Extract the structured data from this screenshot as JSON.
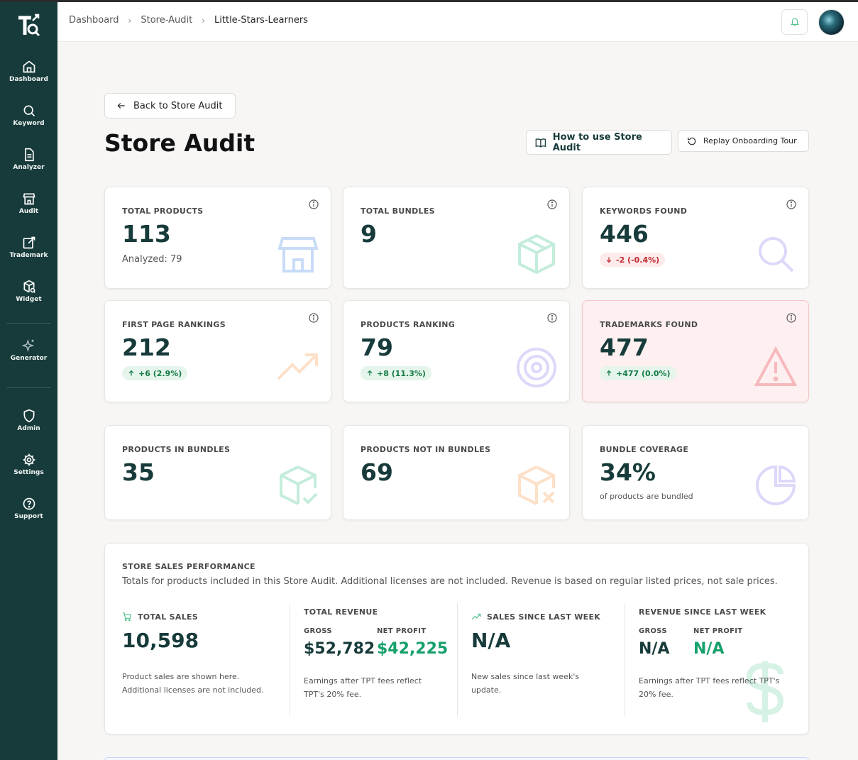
{
  "sidebar": {
    "items": [
      {
        "label": "Dashboard",
        "icon": "home-icon"
      },
      {
        "label": "Keyword",
        "icon": "search-icon"
      },
      {
        "label": "Analyzer",
        "icon": "document-icon"
      },
      {
        "label": "Audit",
        "icon": "store-icon"
      },
      {
        "label": "Trademark",
        "icon": "edit-icon"
      },
      {
        "label": "Widget",
        "icon": "package-search-icon"
      },
      {
        "label": "Generator",
        "icon": "sparkles-icon"
      },
      {
        "label": "Admin",
        "icon": "shield-icon"
      },
      {
        "label": "Settings",
        "icon": "gear-icon"
      },
      {
        "label": "Support",
        "icon": "help-icon"
      }
    ]
  },
  "header": {
    "breadcrumbs": [
      "Dashboard",
      "Store-Audit",
      "Little-Stars-Learners"
    ]
  },
  "page": {
    "back_label": "Back to Store Audit",
    "title": "Store Audit",
    "how_label": "How to use Store Audit",
    "replay_label": "Replay Onboarding Tour"
  },
  "cards": {
    "total_products": {
      "label": "TOTAL PRODUCTS",
      "value": "113",
      "sub": "Analyzed: 79"
    },
    "total_bundles": {
      "label": "TOTAL BUNDLES",
      "value": "9"
    },
    "keywords_found": {
      "label": "KEYWORDS FOUND",
      "value": "446",
      "badge": "-2 (-0.4%)"
    },
    "first_page": {
      "label": "FIRST PAGE RANKINGS",
      "value": "212",
      "badge": "+6 (2.9%)"
    },
    "products_ranking": {
      "label": "PRODUCTS RANKING",
      "value": "79",
      "badge": "+8 (11.3%)"
    },
    "trademarks_found": {
      "label": "TRADEMARKS FOUND",
      "value": "477",
      "badge": "+477 (0.0%)"
    },
    "in_bundles": {
      "label": "PRODUCTS IN BUNDLES",
      "value": "35"
    },
    "not_in_bundles": {
      "label": "PRODUCTS NOT IN BUNDLES",
      "value": "69"
    },
    "bundle_coverage": {
      "label": "BUNDLE COVERAGE",
      "value": "34%",
      "sub": "of products are bundled"
    }
  },
  "sales": {
    "title": "STORE SALES PERFORMANCE",
    "description": "Totals for products included in this Store Audit. Additional licenses are not included. Revenue is based on regular listed prices, not sale prices.",
    "total_sales": {
      "label": "TOTAL SALES",
      "value": "10,598",
      "note1": "Product sales are shown here.",
      "note2": "Additional licenses are not included."
    },
    "total_revenue": {
      "label": "TOTAL REVENUE",
      "gross_label": "GROSS",
      "gross": "$52,782",
      "net_label": "NET PROFIT",
      "net": "$42,225",
      "note1": "Earnings after TPT fees reflect",
      "note2": "TPT's 20% fee."
    },
    "sales_week": {
      "label": "SALES SINCE LAST WEEK",
      "value": "N/A",
      "note1": "New sales since last week's",
      "note2": "update."
    },
    "revenue_week": {
      "label": "REVENUE SINCE LAST WEEK",
      "gross_label": "GROSS",
      "gross": "N/A",
      "net_label": "NET PROFIT",
      "net": "N/A",
      "note1": "Earnings after TPT fees reflect TPT's",
      "note2": "20% fee."
    }
  }
}
